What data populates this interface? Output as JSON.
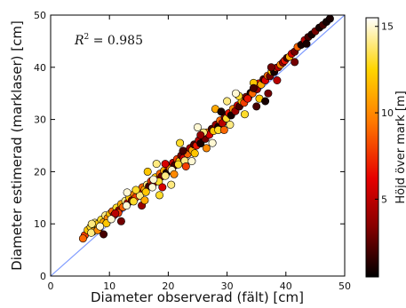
{
  "chart_data": {
    "type": "scatter",
    "xlabel": "Diameter observerad (fält) [cm]",
    "ylabel": "Diameter estimerad (marklaser) [cm]",
    "xlim": [
      0,
      50
    ],
    "ylim": [
      0,
      50
    ],
    "xticks": [
      0,
      10,
      20,
      30,
      40,
      50
    ],
    "yticks": [
      0,
      10,
      20,
      30,
      40,
      50
    ],
    "annotation": {
      "italic_part": "R",
      "superscript": "2",
      "text": " = 0.985"
    },
    "reference_line": {
      "x": [
        0,
        50
      ],
      "y": [
        0,
        50
      ],
      "color": "#7f9bff"
    },
    "grid": false,
    "colorbar": {
      "label": "Höjd över mark [m]",
      "range": [
        0.5,
        15.5
      ],
      "ticks": [
        5,
        10,
        15
      ],
      "colormap": "hot",
      "colors": [
        "#000000",
        "#8a0000",
        "#e60000",
        "#ff7a00",
        "#ffd500",
        "#ffffff"
      ]
    },
    "series": [
      {
        "points": [
          [
            5.8,
            7.8,
            8
          ],
          [
            6.3,
            8.8,
            12
          ],
          [
            6.8,
            9.4,
            13
          ],
          [
            7.2,
            8.5,
            11
          ],
          [
            7.5,
            10.2,
            14
          ],
          [
            7.9,
            9.9,
            12
          ],
          [
            8.2,
            9.1,
            6
          ],
          [
            8.6,
            10.8,
            13
          ],
          [
            9.0,
            10.3,
            11
          ],
          [
            9.3,
            11.6,
            14
          ],
          [
            9.7,
            11.1,
            10
          ],
          [
            10.1,
            11.9,
            12
          ],
          [
            10.5,
            12.4,
            9
          ],
          [
            10.8,
            11.7,
            7
          ],
          [
            11.2,
            13.1,
            13
          ],
          [
            11.6,
            12.6,
            4
          ],
          [
            12.0,
            13.8,
            11
          ],
          [
            12.3,
            13.2,
            9
          ],
          [
            12.7,
            14.4,
            14
          ],
          [
            13.1,
            14.0,
            6
          ],
          [
            13.4,
            15.0,
            12
          ],
          [
            13.8,
            14.5,
            3
          ],
          [
            14.2,
            15.7,
            10
          ],
          [
            14.5,
            15.1,
            8
          ],
          [
            14.9,
            16.3,
            13
          ],
          [
            15.3,
            15.8,
            5
          ],
          [
            15.6,
            17.0,
            9
          ],
          [
            16.0,
            16.6,
            11
          ],
          [
            16.4,
            17.5,
            14
          ],
          [
            16.7,
            17.2,
            2
          ],
          [
            17.1,
            18.2,
            8
          ],
          [
            17.5,
            17.8,
            4
          ],
          [
            17.8,
            18.9,
            12
          ],
          [
            18.2,
            18.4,
            6
          ],
          [
            18.6,
            19.6,
            9
          ],
          [
            18.9,
            19.1,
            3
          ],
          [
            19.3,
            20.2,
            11
          ],
          [
            19.7,
            19.8,
            1
          ],
          [
            20.0,
            21.0,
            7
          ],
          [
            20.4,
            20.6,
            10
          ],
          [
            20.8,
            21.7,
            5
          ],
          [
            21.1,
            21.2,
            2
          ],
          [
            21.5,
            22.4,
            8
          ],
          [
            21.9,
            22.0,
            12
          ],
          [
            22.2,
            23.1,
            3
          ],
          [
            22.6,
            22.6,
            6
          ],
          [
            23.0,
            23.8,
            1
          ],
          [
            23.3,
            23.4,
            9
          ],
          [
            23.7,
            24.5,
            4
          ],
          [
            24.1,
            24.1,
            11
          ],
          [
            24.4,
            25.2,
            2
          ],
          [
            24.8,
            25.0,
            7
          ],
          [
            25.2,
            26.0,
            5
          ],
          [
            25.5,
            25.4,
            1
          ],
          [
            25.9,
            26.8,
            8
          ],
          [
            26.3,
            26.3,
            3
          ],
          [
            26.6,
            27.5,
            10
          ],
          [
            27.0,
            27.1,
            6
          ],
          [
            27.4,
            28.2,
            2
          ],
          [
            27.7,
            27.8,
            12
          ],
          [
            28.1,
            29.0,
            4
          ],
          [
            28.5,
            28.6,
            1
          ],
          [
            28.8,
            29.8,
            9
          ],
          [
            29.2,
            29.3,
            5
          ],
          [
            29.6,
            30.5,
            3
          ],
          [
            29.9,
            30.2,
            13
          ],
          [
            30.3,
            31.2,
            7
          ],
          [
            30.7,
            30.8,
            1
          ],
          [
            31.0,
            32.0,
            10
          ],
          [
            31.4,
            31.6,
            4
          ],
          [
            31.8,
            32.7,
            6
          ],
          [
            32.1,
            32.5,
            2
          ],
          [
            32.5,
            33.5,
            12
          ],
          [
            32.9,
            33.2,
            8
          ],
          [
            33.2,
            34.3,
            3
          ],
          [
            33.6,
            34.1,
            5
          ],
          [
            34.0,
            35.1,
            1
          ],
          [
            34.3,
            35.0,
            9
          ],
          [
            34.7,
            36.0,
            13
          ],
          [
            35.1,
            35.8,
            4
          ],
          [
            35.4,
            36.9,
            7
          ],
          [
            35.8,
            36.7,
            11
          ],
          [
            36.2,
            37.7,
            2
          ],
          [
            36.5,
            37.5,
            6
          ],
          [
            36.9,
            38.4,
            9
          ],
          [
            37.3,
            38.3,
            3
          ],
          [
            37.6,
            39.2,
            12
          ],
          [
            38.0,
            39.1,
            1
          ],
          [
            38.4,
            39.9,
            8
          ],
          [
            38.7,
            40.0,
            5
          ],
          [
            39.1,
            40.5,
            10
          ],
          [
            39.5,
            40.9,
            4
          ],
          [
            39.8,
            41.3,
            7
          ],
          [
            40.2,
            41.8,
            2
          ],
          [
            40.6,
            42.0,
            11
          ],
          [
            41.0,
            42.6,
            6
          ],
          [
            41.5,
            43.0,
            3
          ],
          [
            42.0,
            43.9,
            9
          ],
          [
            42.6,
            44.3,
            1
          ],
          [
            43.2,
            45.2,
            5
          ],
          [
            43.8,
            45.8,
            2
          ],
          [
            44.4,
            46.3,
            1
          ],
          [
            45.0,
            46.9,
            3
          ],
          [
            45.7,
            47.6,
            1
          ],
          [
            46.3,
            48.1,
            2
          ],
          [
            46.9,
            48.7,
            1
          ],
          [
            47.5,
            49.3,
            1
          ],
          [
            5.5,
            7.2,
            9
          ],
          [
            6.9,
            8.3,
            14
          ],
          [
            8.0,
            8.8,
            10
          ],
          [
            9.5,
            10.1,
            12
          ],
          [
            10.3,
            10.9,
            15
          ],
          [
            11.5,
            12.1,
            8
          ],
          [
            12.9,
            13.5,
            15
          ],
          [
            14.1,
            14.3,
            13
          ],
          [
            15.2,
            15.4,
            14
          ],
          [
            16.2,
            16.1,
            12
          ],
          [
            17.3,
            17.0,
            15
          ],
          [
            18.4,
            18.1,
            13
          ],
          [
            19.5,
            19.2,
            14
          ],
          [
            20.6,
            20.3,
            15
          ],
          [
            21.7,
            21.4,
            13
          ],
          [
            22.8,
            22.1,
            14
          ],
          [
            13.0,
            16.0,
            15
          ],
          [
            16.5,
            20.0,
            12
          ],
          [
            18.0,
            21.5,
            14
          ],
          [
            22.0,
            25.5,
            13
          ],
          [
            25.0,
            28.5,
            15
          ],
          [
            28.0,
            32.0,
            11
          ],
          [
            30.0,
            33.5,
            14
          ],
          [
            32.0,
            34.5,
            13
          ],
          [
            31.5,
            35.0,
            15
          ],
          [
            34.5,
            37.0,
            12
          ],
          [
            27.5,
            25.5,
            15
          ],
          [
            30.5,
            29.0,
            14
          ],
          [
            33.0,
            31.0,
            13
          ],
          [
            35.5,
            34.0,
            12
          ],
          [
            24.0,
            22.0,
            15
          ],
          [
            20.5,
            17.5,
            14
          ],
          [
            18.5,
            15.5,
            13
          ],
          [
            36.5,
            33.5,
            1
          ],
          [
            35.0,
            32.5,
            2
          ],
          [
            37.0,
            35.0,
            3
          ],
          [
            28.5,
            28.0,
            13
          ],
          [
            26.5,
            24.5,
            10
          ],
          [
            23.0,
            21.0,
            8
          ],
          [
            19.0,
            17.0,
            6
          ],
          [
            15.5,
            13.5,
            4
          ],
          [
            12.0,
            10.5,
            3
          ],
          [
            9.0,
            8.0,
            2
          ],
          [
            21.0,
            19.5,
            10
          ],
          [
            24.5,
            23.5,
            12
          ],
          [
            29.5,
            28.0,
            9
          ],
          [
            33.5,
            34.0,
            7
          ],
          [
            38.5,
            37.5,
            5
          ],
          [
            41.5,
            41.0,
            3
          ],
          [
            43.5,
            44.5,
            1
          ],
          [
            26.0,
            27.5,
            14
          ],
          [
            17.5,
            18.5,
            15
          ],
          [
            14.5,
            16.5,
            13
          ],
          [
            16.0,
            14.5,
            11
          ],
          [
            22.5,
            24.0,
            2
          ],
          [
            25.5,
            27.0,
            4
          ],
          [
            19.5,
            21.5,
            6
          ],
          [
            29.0,
            31.5,
            1
          ],
          [
            34.5,
            36.0,
            2
          ],
          [
            37.5,
            40.0,
            3
          ],
          [
            11.0,
            12.0,
            5
          ],
          [
            7.0,
            10.0,
            14
          ],
          [
            8.4,
            9.5,
            15
          ]
        ]
      }
    ]
  }
}
